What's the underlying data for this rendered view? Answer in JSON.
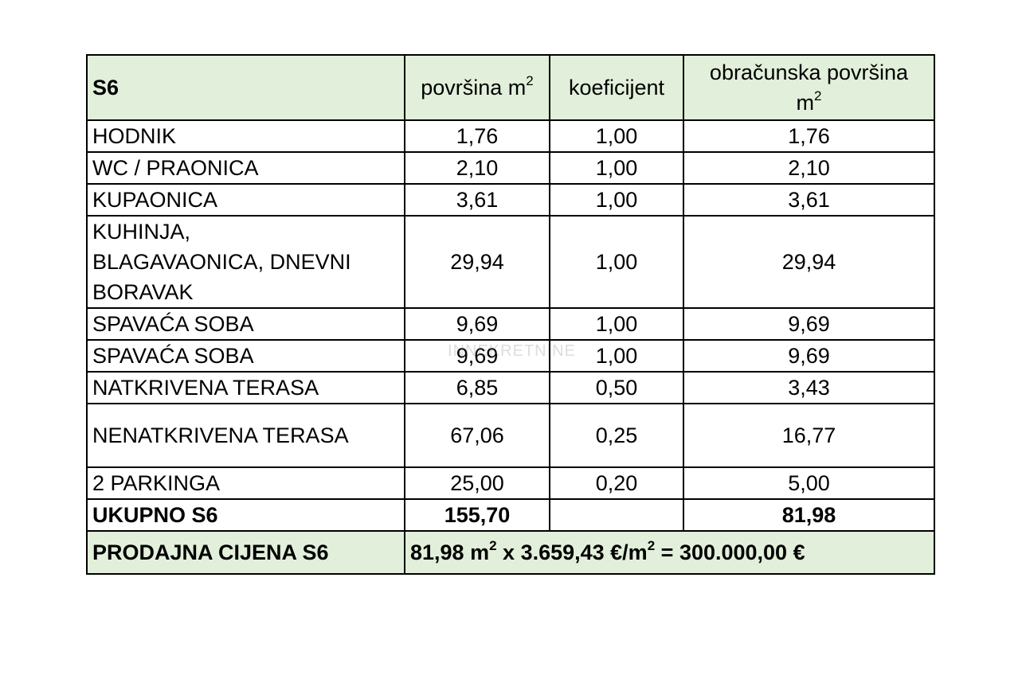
{
  "watermark": "INNEKRETNINE",
  "table": {
    "header": [
      [
        [
          {
            "t": "S6",
            "sup": false
          }
        ]
      ],
      [
        [
          {
            "t": "površina m",
            "sup": false
          },
          {
            "t": "2",
            "sup": true
          }
        ]
      ],
      [
        [
          {
            "t": "koeficijent",
            "sup": false
          }
        ]
      ],
      [
        [
          {
            "t": "obračunska površina",
            "sup": false
          }
        ],
        [
          {
            "t": "m",
            "sup": false
          },
          {
            "t": "2",
            "sup": true
          }
        ]
      ]
    ],
    "rows": [
      [
        [
          "HODNIK"
        ],
        "1,76",
        "1,00",
        "1,76"
      ],
      [
        [
          "WC / PRAONICA"
        ],
        "2,10",
        "1,00",
        "2,10"
      ],
      [
        [
          "KUPAONICA"
        ],
        "3,61",
        "1,00",
        "3,61"
      ],
      [
        [
          "KUHINJA,",
          "BLAGAVAONICA, DNEVNI",
          "BORAVAK"
        ],
        "29,94",
        "1,00",
        "29,94"
      ],
      [
        [
          "SPAVAĆA SOBA"
        ],
        "9,69",
        "1,00",
        "9,69"
      ],
      [
        [
          "SPAVAĆA SOBA"
        ],
        "9,69",
        "1,00",
        "9,69"
      ],
      [
        [
          "NATKRIVENA TERASA"
        ],
        "6,85",
        "0,50",
        "3,43"
      ],
      [
        [
          "NENATKRIVENA TERASA"
        ],
        "67,06",
        "0,25",
        "16,77"
      ],
      [
        [
          "2 PARKINGA"
        ],
        "25,00",
        "0,20",
        "5,00"
      ]
    ],
    "total": {
      "label": "UKUPNO S6",
      "area": "155,70",
      "computed": "81,98"
    },
    "price": {
      "label": "PRODAJNA CIJENA S6",
      "formula": [
        {
          "t": "81,98 m",
          "sup": false
        },
        {
          "t": "2",
          "sup": true
        },
        {
          "t": " x 3.659,43 €/m",
          "sup": false
        },
        {
          "t": "2",
          "sup": true
        },
        {
          "t": " = 300.000,00 €",
          "sup": false
        }
      ]
    }
  }
}
